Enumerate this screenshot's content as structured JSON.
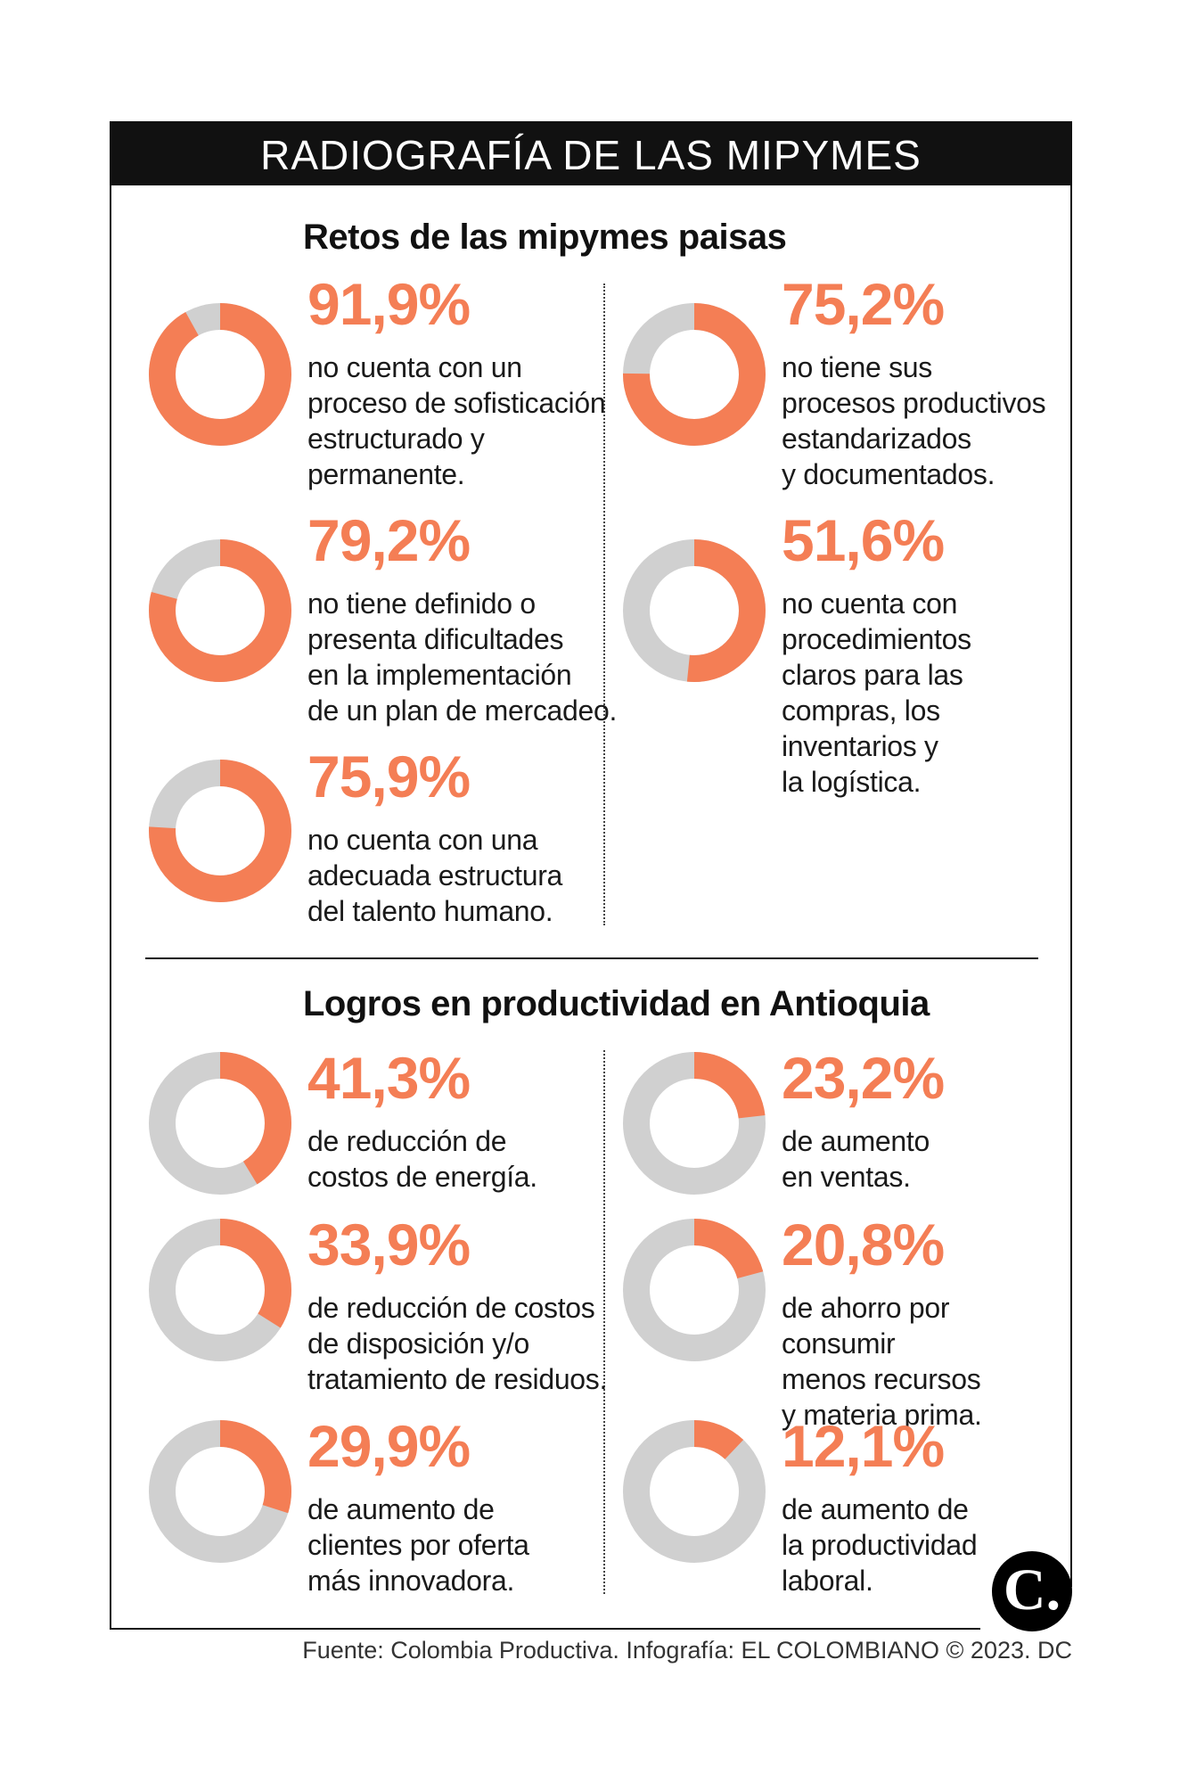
{
  "title": "RADIOGRAFÍA DE LAS MIPYMES",
  "colors": {
    "accent": "#f47e55",
    "track": "#d0d0d0",
    "header_bg": "#111111"
  },
  "chart_data": [
    {
      "type": "pie",
      "title": "Retos de las mipymes paisas",
      "items": [
        {
          "value": 91.9,
          "label": "91,9%",
          "text": "no cuenta con un\nproceso de sofisticación\nestructurado y\npermanente."
        },
        {
          "value": 75.2,
          "label": "75,2%",
          "text": "no tiene sus\nprocesos productivos\nestandarizados\ny documentados."
        },
        {
          "value": 79.2,
          "label": "79,2%",
          "text": "no tiene definido o\npresenta dificultades\nen la implementación\nde un plan de mercadeo."
        },
        {
          "value": 51.6,
          "label": "51,6%",
          "text": "no cuenta con\nprocedimientos\nclaros para las\ncompras, los\ninventarios y\nla logística."
        },
        {
          "value": 75.9,
          "label": "75,9%",
          "text": "no cuenta con una\nadecuada estructura\ndel talento humano."
        }
      ]
    },
    {
      "type": "pie",
      "title": "Logros en productividad en Antioquia",
      "items": [
        {
          "value": 41.3,
          "label": "41,3%",
          "text": "de reducción de\ncostos de energía."
        },
        {
          "value": 23.2,
          "label": "23,2%",
          "text": "de aumento\nen ventas."
        },
        {
          "value": 33.9,
          "label": "33,9%",
          "text": "de reducción de costos\nde disposición y/o\ntratamiento de residuos."
        },
        {
          "value": 20.8,
          "label": "20,8%",
          "text": "de ahorro por consumir\nmenos recursos\ny materia prima."
        },
        {
          "value": 29.9,
          "label": "29,9%",
          "text": "de aumento de\nclientes por oferta\nmás innovadora."
        },
        {
          "value": 12.1,
          "label": "12,1%",
          "text": "de aumento de\nla productividad\nlaboral."
        }
      ]
    }
  ],
  "source": "Fuente: Colombia Productiva. Infografía: EL COLOMBIANO © 2023. DC",
  "logo_text": "C."
}
